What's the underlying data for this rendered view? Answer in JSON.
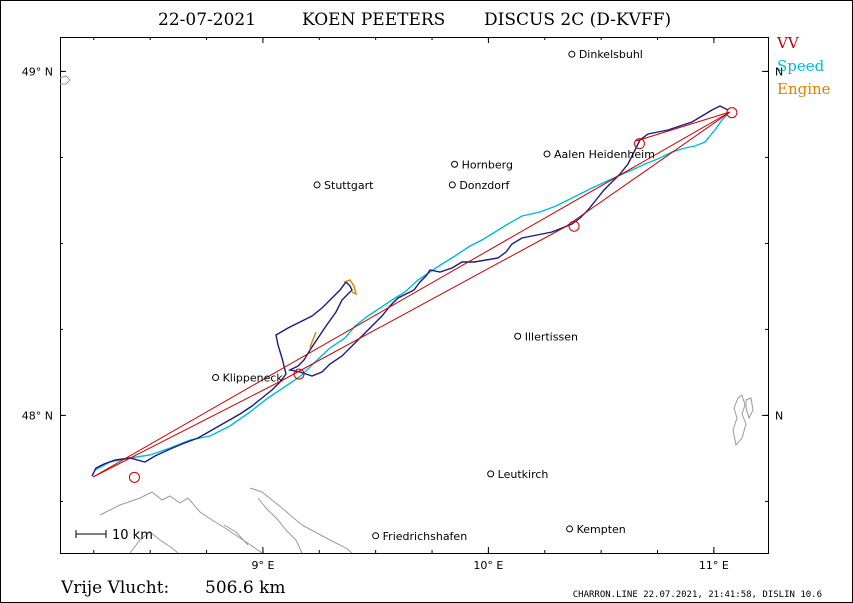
{
  "header": {
    "date": "22-07-2021",
    "pilot": "KOEN PEETERS",
    "glider": "DISCUS 2C (D-KVFF)"
  },
  "legend": [
    {
      "label": "VV",
      "color": "#cc0000"
    },
    {
      "label": "Speed",
      "color": "#00bcd4"
    },
    {
      "label": "Engine",
      "color": "#e08000"
    }
  ],
  "axes": {
    "lat_ticks": [
      {
        "value": 49,
        "label": "49° N"
      },
      {
        "value": 48,
        "label": "48° N"
      }
    ],
    "lon_ticks": [
      {
        "value": 9,
        "label": "9° E"
      },
      {
        "value": 10,
        "label": "10° E"
      },
      {
        "value": 11,
        "label": "11° E"
      }
    ],
    "lon_range": [
      8.1,
      11.24
    ],
    "lat_range": [
      47.6,
      49.1
    ]
  },
  "cities": [
    {
      "name": "Dinkelsbuhl",
      "lon": 10.37,
      "lat": 49.05
    },
    {
      "name": "Aalen Heidenheim",
      "lon": 10.26,
      "lat": 48.76
    },
    {
      "name": "Hornberg",
      "lon": 9.85,
      "lat": 48.73
    },
    {
      "name": "Stuttgart",
      "lon": 9.24,
      "lat": 48.67
    },
    {
      "name": "Donzdorf",
      "lon": 9.84,
      "lat": 48.67
    },
    {
      "name": "Illertissen",
      "lon": 10.13,
      "lat": 48.23
    },
    {
      "name": "Klippeneck",
      "lon": 8.79,
      "lat": 48.11
    },
    {
      "name": "Leutkirch",
      "lon": 10.01,
      "lat": 47.83
    },
    {
      "name": "Kempten",
      "lon": 10.36,
      "lat": 47.67
    },
    {
      "name": "Friedrichshafen",
      "lon": 9.5,
      "lat": 47.65
    }
  ],
  "turnpoints": [
    {
      "lon": 8.43,
      "lat": 47.82
    },
    {
      "lon": 9.16,
      "lat": 48.12
    },
    {
      "lon": 10.38,
      "lat": 48.55
    },
    {
      "lon": 10.67,
      "lat": 48.79
    },
    {
      "lon": 11.08,
      "lat": 48.88
    }
  ],
  "scale_bar": {
    "label": "10 km"
  },
  "summary": {
    "label": "Vrije Vlucht:",
    "distance": "506.6 km"
  },
  "footer": "CHARRON.LINE 22.07.2021, 21:41:58, DISLIN 10.6"
}
